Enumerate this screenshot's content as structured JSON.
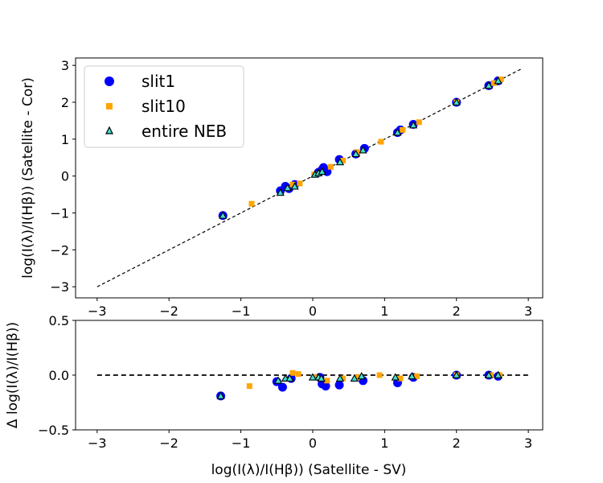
{
  "chart_data": [
    {
      "type": "scatter",
      "ylabel": "log(I(λ)/I(Hβ)) (Satellite - Cor)",
      "xlabel": "",
      "xlim": [
        -3.3,
        3.2
      ],
      "ylim": [
        -3.3,
        3.2
      ],
      "xticks": [
        -3,
        -2,
        -1,
        0,
        1,
        2,
        3
      ],
      "yticks": [
        -3,
        -2,
        -1,
        0,
        1,
        2,
        3
      ],
      "tick_labels_x": [
        "−3",
        "−2",
        "−1",
        "0",
        "1",
        "2",
        "3"
      ],
      "tick_labels_y": [
        "−3",
        "−2",
        "−1",
        "0",
        "1",
        "2",
        "3"
      ],
      "reference_line": {
        "x": [
          -3,
          2.9
        ],
        "y": [
          -3,
          2.9
        ],
        "style": "dashed",
        "color": "#000000"
      },
      "legend": {
        "position": "top-left",
        "entries": [
          {
            "label": "slit1",
            "marker": "circle",
            "color": "#0000ff"
          },
          {
            "label": "slit10",
            "marker": "square",
            "color": "#ffa500"
          },
          {
            "label": "entire NEB",
            "marker": "triangle",
            "color": "#000000"
          }
        ]
      },
      "series": [
        {
          "name": "slit1",
          "marker": "circle",
          "color": "#0000ff",
          "x": [
            -1.25,
            -0.45,
            -0.38,
            -0.33,
            -0.25,
            0.08,
            0.12,
            0.15,
            0.2,
            0.37,
            0.6,
            0.72,
            1.18,
            1.22,
            1.4,
            2.0,
            2.45,
            2.58
          ],
          "y": [
            -1.07,
            -0.4,
            -0.28,
            -0.34,
            -0.23,
            0.1,
            0.15,
            0.23,
            0.12,
            0.45,
            0.6,
            0.75,
            1.18,
            1.25,
            1.4,
            2.0,
            2.45,
            2.58
          ]
        },
        {
          "name": "slit10",
          "marker": "square",
          "color": "#ffa500",
          "x": [
            -0.85,
            -0.28,
            -0.18,
            0.02,
            0.25,
            0.42,
            0.62,
            0.95,
            1.25,
            1.48,
            2.0,
            2.52,
            2.62
          ],
          "y": [
            -0.75,
            -0.23,
            -0.2,
            0.04,
            0.25,
            0.42,
            0.65,
            0.93,
            1.25,
            1.46,
            2.0,
            2.52,
            2.62
          ]
        },
        {
          "name": "entire NEB",
          "marker": "triangle",
          "color": "#000000",
          "fill": "#40e0d0",
          "x": [
            -1.25,
            -0.45,
            -0.35,
            -0.25,
            0.03,
            0.08,
            0.13,
            0.38,
            0.6,
            0.7,
            1.18,
            1.4,
            2.0,
            2.45,
            2.58
          ],
          "y": [
            -1.07,
            -0.45,
            -0.32,
            -0.28,
            0.04,
            0.08,
            0.12,
            0.38,
            0.6,
            0.7,
            1.18,
            1.38,
            2.0,
            2.45,
            2.58
          ]
        }
      ]
    },
    {
      "type": "scatter",
      "ylabel": "Δ log(I(λ)/I(Hβ))",
      "xlabel": "log(I(λ)/I(Hβ)) (Satellite - SV)",
      "xlim": [
        -3.3,
        3.2
      ],
      "ylim": [
        -0.5,
        0.5
      ],
      "xticks": [
        -3,
        -2,
        -1,
        0,
        1,
        2,
        3
      ],
      "yticks": [
        -0.5,
        0.0,
        0.5
      ],
      "tick_labels_x": [
        "−3",
        "−2",
        "−1",
        "0",
        "1",
        "2",
        "3"
      ],
      "tick_labels_y": [
        "−0.5",
        "0.0",
        "0.5"
      ],
      "reference_line": {
        "x": [
          -3,
          3
        ],
        "y": [
          0,
          0
        ],
        "style": "dashed",
        "color": "#000000"
      },
      "series": [
        {
          "name": "slit1",
          "marker": "circle",
          "color": "#0000ff",
          "x": [
            -1.28,
            -0.5,
            -0.42,
            -0.3,
            0.1,
            0.13,
            0.18,
            0.37,
            0.7,
            1.18,
            1.4,
            2.0,
            2.45,
            2.58
          ],
          "y": [
            -0.19,
            -0.06,
            -0.11,
            -0.03,
            -0.02,
            -0.08,
            -0.1,
            -0.09,
            -0.05,
            -0.07,
            -0.02,
            0.0,
            0.0,
            -0.01
          ]
        },
        {
          "name": "slit10",
          "marker": "square",
          "color": "#ffa500",
          "x": [
            -0.88,
            -0.28,
            -0.2,
            0.02,
            0.2,
            0.42,
            0.62,
            0.93,
            1.22,
            1.45,
            2.0,
            2.48,
            2.6
          ],
          "y": [
            -0.1,
            0.02,
            0.01,
            -0.02,
            -0.05,
            -0.03,
            -0.02,
            0.0,
            -0.03,
            -0.01,
            0.0,
            0.0,
            0.0
          ]
        },
        {
          "name": "entire NEB",
          "marker": "triangle",
          "color": "#000000",
          "fill": "#40e0d0",
          "x": [
            -1.28,
            -0.48,
            -0.38,
            -0.32,
            0.0,
            0.08,
            0.12,
            0.38,
            0.58,
            0.68,
            1.15,
            1.38,
            2.0,
            2.45,
            2.58
          ],
          "y": [
            -0.19,
            -0.05,
            -0.03,
            -0.03,
            -0.02,
            -0.02,
            -0.03,
            -0.03,
            -0.03,
            -0.01,
            -0.02,
            -0.01,
            0.0,
            0.0,
            0.0
          ]
        }
      ]
    }
  ]
}
